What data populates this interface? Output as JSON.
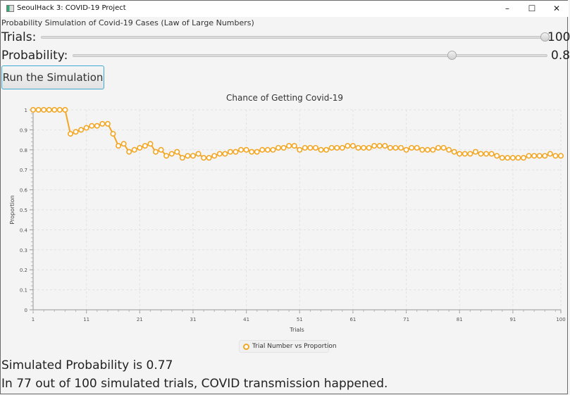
{
  "window": {
    "title": "SeoulHack 3: COVID-19 Project",
    "minimize": "–",
    "maximize": "☐",
    "close": "✕"
  },
  "header": "Probability Simulation of Covid-19 Cases (Law of Large Numbers)",
  "trials": {
    "label": "Trials:",
    "value": "100",
    "fraction": 1.0
  },
  "probability": {
    "label": "Probability:",
    "value": "0.8",
    "fraction": 0.8
  },
  "run_button": "Run the Simulation",
  "chart_data": {
    "type": "line",
    "title": "Chance of Getting Covid-19",
    "xlabel": "Trials",
    "ylabel": "Proportion",
    "xlim": [
      1,
      100
    ],
    "ylim": [
      0,
      1
    ],
    "xticks": [
      "1",
      "11",
      "21",
      "31",
      "41",
      "51",
      "61",
      "71",
      "81",
      "91",
      "100"
    ],
    "yticks": [
      "0",
      "0.1",
      "0.2",
      "0.3",
      "0.4",
      "0.5",
      "0.6",
      "0.7",
      "0.8",
      "0.9",
      "1"
    ],
    "grid": true,
    "legend": "bottom",
    "color": "#f3a623",
    "series": [
      {
        "name": "Trial Number vs Proportion",
        "values": [
          1,
          1,
          1,
          1,
          1,
          1,
          1,
          0.88,
          0.89,
          0.9,
          0.91,
          0.92,
          0.92,
          0.93,
          0.93,
          0.88,
          0.82,
          0.83,
          0.79,
          0.8,
          0.81,
          0.82,
          0.83,
          0.79,
          0.8,
          0.77,
          0.78,
          0.79,
          0.76,
          0.77,
          0.77,
          0.78,
          0.76,
          0.76,
          0.77,
          0.78,
          0.78,
          0.79,
          0.79,
          0.8,
          0.8,
          0.79,
          0.79,
          0.8,
          0.8,
          0.8,
          0.81,
          0.81,
          0.82,
          0.82,
          0.8,
          0.81,
          0.81,
          0.81,
          0.8,
          0.8,
          0.81,
          0.81,
          0.81,
          0.82,
          0.82,
          0.81,
          0.81,
          0.81,
          0.82,
          0.82,
          0.82,
          0.81,
          0.81,
          0.81,
          0.8,
          0.81,
          0.81,
          0.8,
          0.8,
          0.8,
          0.81,
          0.81,
          0.8,
          0.79,
          0.78,
          0.78,
          0.78,
          0.79,
          0.78,
          0.78,
          0.78,
          0.77,
          0.76,
          0.76,
          0.76,
          0.76,
          0.76,
          0.77,
          0.77,
          0.77,
          0.77,
          0.78,
          0.77,
          0.77
        ]
      }
    ]
  },
  "result": {
    "probability_text": "Simulated Probability is 0.77",
    "summary_text": "In 77 out of 100 simulated trials, COVID transmission happened."
  }
}
